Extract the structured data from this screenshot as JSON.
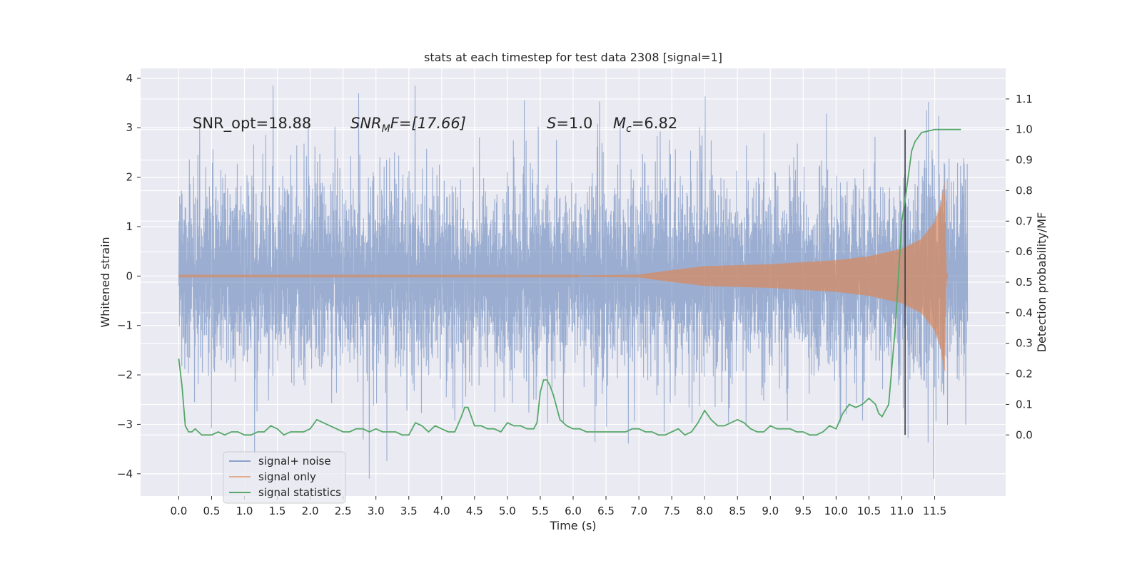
{
  "chart_data": {
    "type": "line",
    "title": "stats at each timestep for test data 2308 [signal=1]",
    "xlabel": "Time (s)",
    "ylabel_left": "Whitened strain",
    "ylabel_right": "Detection probability/MF",
    "xlim": [
      -0.58,
      12.58
    ],
    "ylim_left": [
      -4.45,
      4.2
    ],
    "ylim_right": [
      -0.2,
      1.2
    ],
    "x_ticks": [
      "0.0",
      "0.5",
      "1.0",
      "1.5",
      "2.0",
      "2.5",
      "3.0",
      "3.5",
      "4.0",
      "4.5",
      "5.0",
      "5.5",
      "6.0",
      "6.5",
      "7.0",
      "7.5",
      "8.0",
      "8.5",
      "9.0",
      "9.5",
      "10.0",
      "10.5",
      "11.0",
      "11.5"
    ],
    "y_ticks_left": [
      "4",
      "3",
      "2",
      "1",
      "0",
      "−1",
      "−2",
      "−3",
      "−4"
    ],
    "y_ticks_right": [
      "1.1",
      "1.0",
      "0.9",
      "0.8",
      "0.7",
      "0.6",
      "0.5",
      "0.4",
      "0.3",
      "0.2",
      "0.1",
      "0.0"
    ],
    "grid": true,
    "legend_position": "lower-left",
    "annotations": {
      "snr_opt": "SNR_opt=18.88",
      "snr_mf_main": "SNR",
      "snr_mf_sub": "M",
      "snr_mf_rest": "F=[17.66]",
      "s_label": "S",
      "s_value": "=1.0",
      "mc_label": "M",
      "mc_sub": "c",
      "mc_value": "=6.82"
    },
    "vline_x": 11.05,
    "series": [
      {
        "name": "signal+ noise",
        "axis": "left",
        "color": "#4c72b0",
        "opacity": 0.5,
        "x_range": [
          0.0,
          12.0
        ],
        "noise_spread": 1.15,
        "max": 3.85,
        "min": -4.1
      },
      {
        "name": "signal only",
        "axis": "left",
        "color": "#dd8452",
        "opacity": 0.5,
        "x_range": [
          0.0,
          11.7
        ],
        "envelope": [
          [
            0.0,
            0.01
          ],
          [
            6.0,
            0.01
          ],
          [
            7.0,
            0.03
          ],
          [
            7.5,
            0.12
          ],
          [
            8.0,
            0.2
          ],
          [
            9.0,
            0.24
          ],
          [
            10.0,
            0.32
          ],
          [
            10.5,
            0.4
          ],
          [
            11.0,
            0.55
          ],
          [
            11.3,
            0.75
          ],
          [
            11.5,
            1.1
          ],
          [
            11.6,
            1.5
          ],
          [
            11.65,
            1.95
          ],
          [
            11.68,
            0.05
          ],
          [
            12.0,
            0.01
          ]
        ]
      },
      {
        "name": "signal statistics",
        "axis": "right",
        "color": "#55a868",
        "opacity": 1.0,
        "x": [
          0.0,
          0.05,
          0.1,
          0.15,
          0.2,
          0.25,
          0.3,
          0.35,
          0.4,
          0.5,
          0.6,
          0.7,
          0.8,
          0.9,
          1.0,
          1.1,
          1.2,
          1.3,
          1.4,
          1.5,
          1.6,
          1.7,
          1.8,
          1.9,
          2.0,
          2.1,
          2.2,
          2.3,
          2.4,
          2.5,
          2.6,
          2.7,
          2.8,
          2.9,
          3.0,
          3.1,
          3.2,
          3.3,
          3.4,
          3.5,
          3.6,
          3.7,
          3.8,
          3.9,
          4.0,
          4.1,
          4.2,
          4.3,
          4.35,
          4.4,
          4.5,
          4.6,
          4.7,
          4.8,
          4.9,
          5.0,
          5.1,
          5.2,
          5.3,
          5.4,
          5.45,
          5.5,
          5.55,
          5.6,
          5.65,
          5.7,
          5.8,
          5.9,
          6.0,
          6.1,
          6.2,
          6.3,
          6.4,
          6.5,
          6.6,
          6.7,
          6.8,
          6.9,
          7.0,
          7.1,
          7.2,
          7.3,
          7.4,
          7.5,
          7.6,
          7.7,
          7.8,
          7.9,
          8.0,
          8.1,
          8.2,
          8.3,
          8.4,
          8.5,
          8.6,
          8.7,
          8.8,
          8.9,
          9.0,
          9.1,
          9.2,
          9.3,
          9.4,
          9.5,
          9.6,
          9.7,
          9.8,
          9.9,
          10.0,
          10.1,
          10.2,
          10.3,
          10.4,
          10.5,
          10.6,
          10.65,
          10.7,
          10.75,
          10.8,
          10.9,
          11.0,
          11.05,
          11.1,
          11.15,
          11.2,
          11.3,
          11.5,
          11.7,
          11.9
        ],
        "y": [
          0.25,
          0.16,
          0.03,
          0.01,
          0.01,
          0.02,
          0.01,
          0.0,
          0.0,
          0.0,
          0.01,
          0.0,
          0.01,
          0.01,
          0.0,
          0.0,
          0.01,
          0.01,
          0.03,
          0.02,
          0.0,
          0.01,
          0.01,
          0.01,
          0.02,
          0.05,
          0.04,
          0.03,
          0.02,
          0.01,
          0.01,
          0.02,
          0.02,
          0.01,
          0.02,
          0.01,
          0.01,
          0.01,
          0.0,
          0.0,
          0.04,
          0.03,
          0.01,
          0.03,
          0.02,
          0.01,
          0.01,
          0.06,
          0.09,
          0.09,
          0.03,
          0.03,
          0.02,
          0.02,
          0.01,
          0.04,
          0.03,
          0.03,
          0.02,
          0.02,
          0.04,
          0.14,
          0.18,
          0.18,
          0.16,
          0.13,
          0.05,
          0.03,
          0.02,
          0.02,
          0.01,
          0.01,
          0.01,
          0.01,
          0.01,
          0.01,
          0.01,
          0.02,
          0.02,
          0.01,
          0.01,
          0.0,
          0.0,
          0.01,
          0.02,
          0.0,
          0.01,
          0.04,
          0.08,
          0.05,
          0.03,
          0.03,
          0.04,
          0.05,
          0.04,
          0.02,
          0.01,
          0.01,
          0.03,
          0.02,
          0.02,
          0.02,
          0.01,
          0.01,
          0.0,
          0.0,
          0.01,
          0.03,
          0.02,
          0.07,
          0.1,
          0.09,
          0.1,
          0.12,
          0.1,
          0.07,
          0.06,
          0.08,
          0.1,
          0.35,
          0.7,
          0.77,
          0.85,
          0.93,
          0.96,
          0.99,
          1.0,
          1.0,
          1.0
        ]
      }
    ]
  }
}
